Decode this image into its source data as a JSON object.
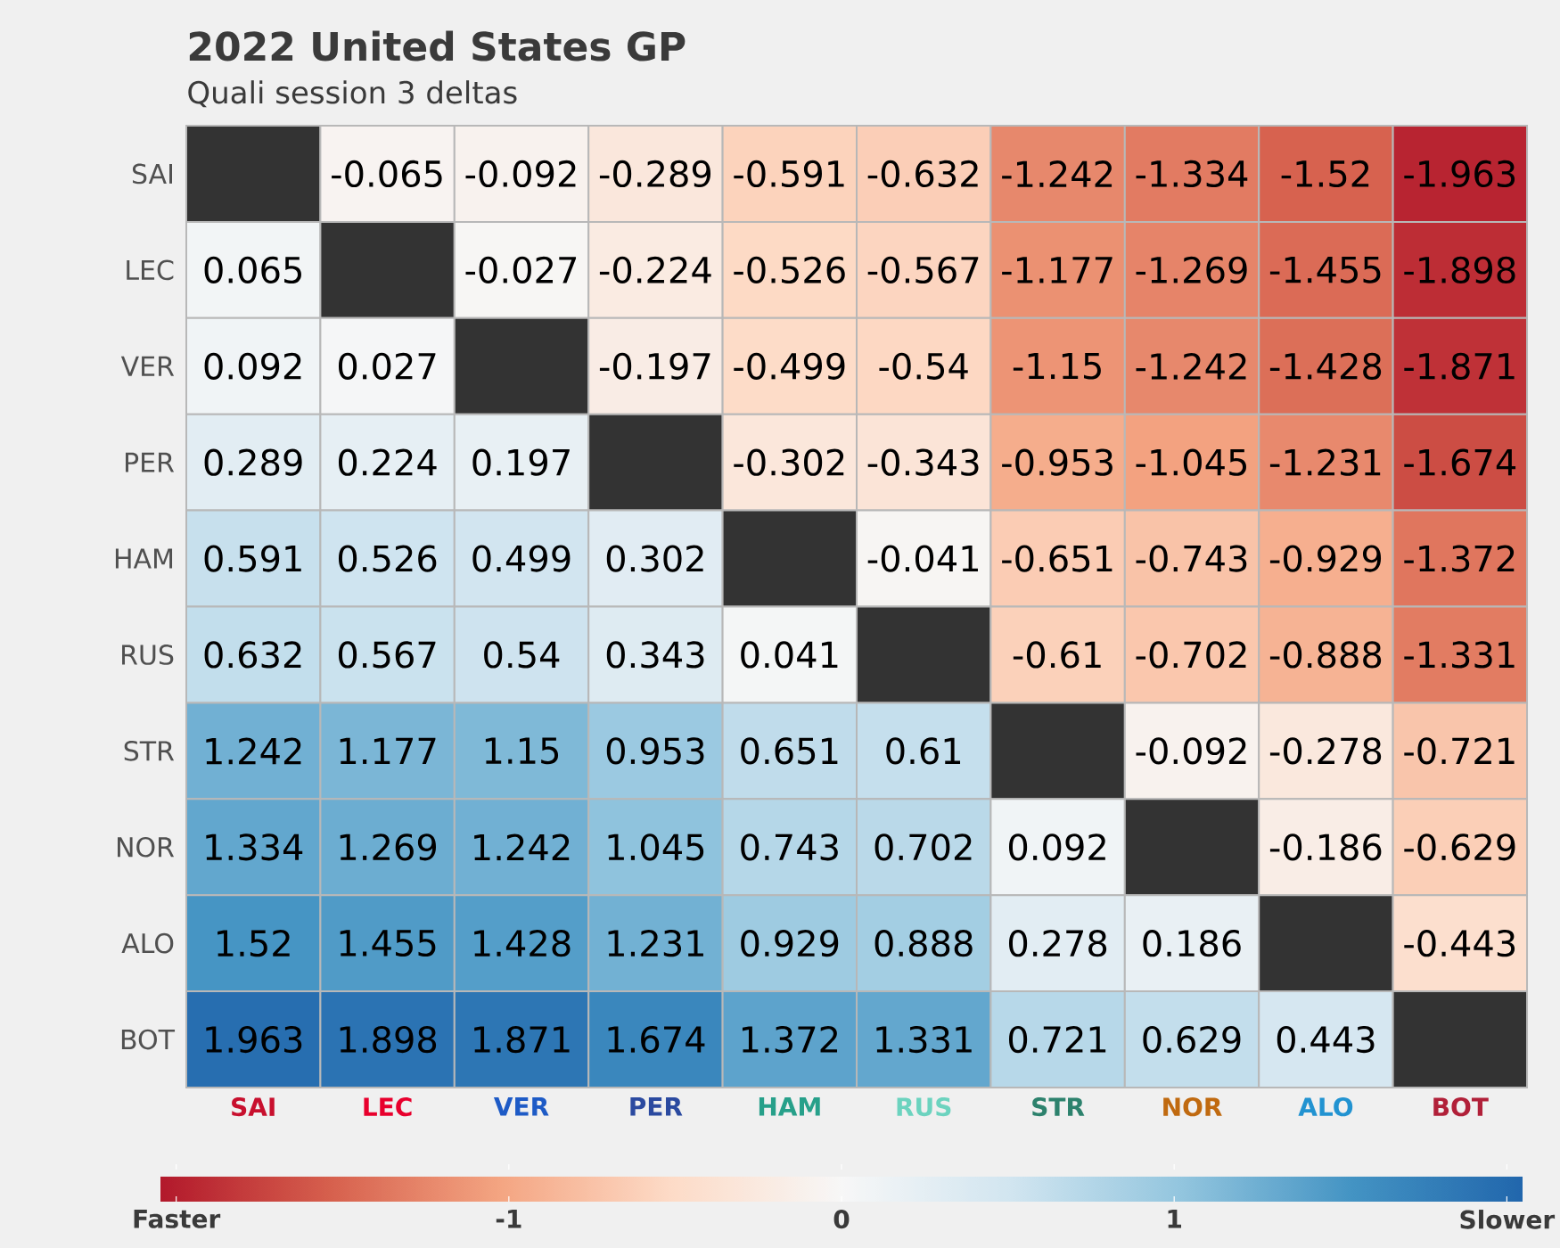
{
  "chart_data": {
    "type": "heatmap",
    "title": "2022 United States GP",
    "subtitle": "Quali session 3 deltas",
    "categories": [
      "SAI",
      "LEC",
      "VER",
      "PER",
      "HAM",
      "RUS",
      "STR",
      "NOR",
      "ALO",
      "BOT"
    ],
    "y_categories": [
      "SAI",
      "LEC",
      "VER",
      "PER",
      "HAM",
      "RUS",
      "STR",
      "NOR",
      "ALO",
      "BOT"
    ],
    "cells": [
      [
        null,
        -0.065,
        -0.092,
        -0.289,
        -0.591,
        -0.632,
        -1.242,
        -1.334,
        -1.52,
        -1.963
      ],
      [
        0.065,
        null,
        -0.027,
        -0.224,
        -0.526,
        -0.567,
        -1.177,
        -1.269,
        -1.455,
        -1.898
      ],
      [
        0.092,
        0.027,
        null,
        -0.197,
        -0.499,
        -0.54,
        -1.15,
        -1.242,
        -1.428,
        -1.871
      ],
      [
        0.289,
        0.224,
        0.197,
        null,
        -0.302,
        -0.343,
        -0.953,
        -1.045,
        -1.231,
        -1.674
      ],
      [
        0.591,
        0.526,
        0.499,
        0.302,
        null,
        -0.041,
        -0.651,
        -0.743,
        -0.929,
        -1.372
      ],
      [
        0.632,
        0.567,
        0.54,
        0.343,
        0.041,
        null,
        -0.61,
        -0.702,
        -0.888,
        -1.331
      ],
      [
        1.242,
        1.177,
        1.15,
        0.953,
        0.651,
        0.61,
        null,
        -0.092,
        -0.278,
        -0.721
      ],
      [
        1.334,
        1.269,
        1.242,
        1.045,
        0.743,
        0.702,
        0.092,
        null,
        -0.186,
        -0.629
      ],
      [
        1.52,
        1.455,
        1.428,
        1.231,
        0.929,
        0.888,
        0.278,
        0.186,
        null,
        -0.443
      ],
      [
        1.963,
        1.898,
        1.871,
        1.674,
        1.372,
        1.331,
        0.721,
        0.629,
        0.443,
        null
      ]
    ],
    "data_labels": true,
    "clim": [
      -2.05,
      2.05
    ],
    "cticks": [
      {
        "value": -2,
        "label": "Faster"
      },
      -1,
      0,
      1,
      {
        "value": 2,
        "label": "Slower"
      }
    ]
  }
}
